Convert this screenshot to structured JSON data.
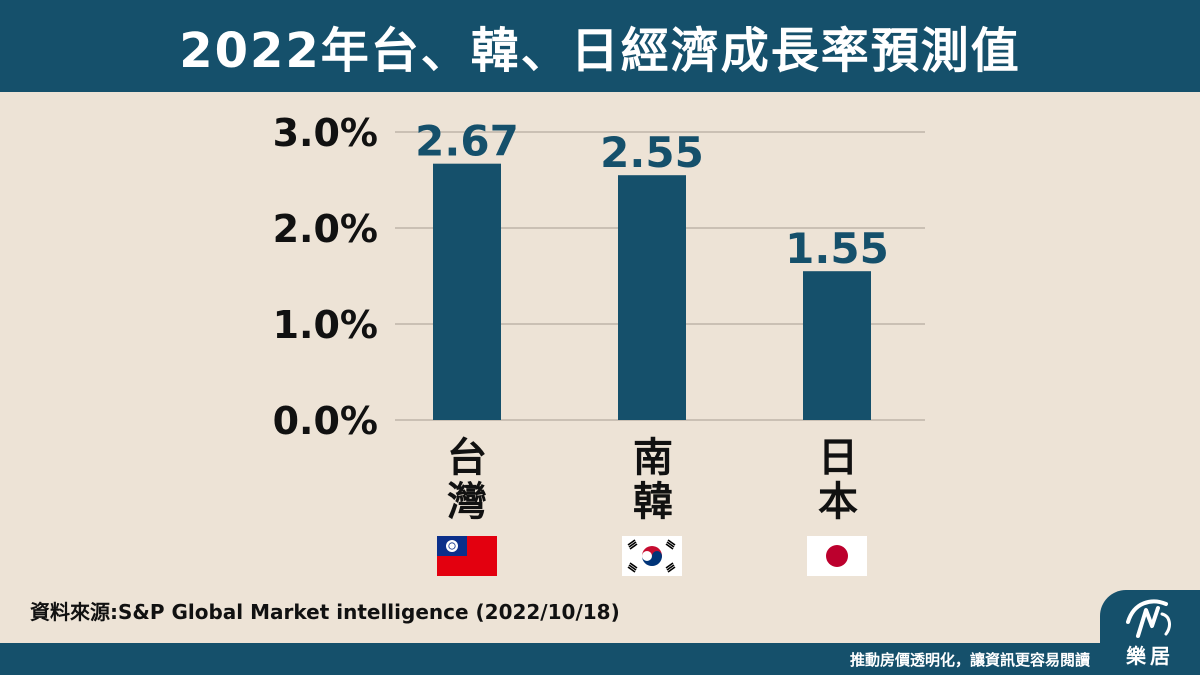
{
  "header": {
    "title": "2022年台、韓、日經濟成長率預測值"
  },
  "chart_data": {
    "type": "bar",
    "categories": [
      "台灣",
      "南韓",
      "日本"
    ],
    "values": [
      2.67,
      2.55,
      1.55
    ],
    "value_labels": [
      "2.67",
      "2.55",
      "1.55"
    ],
    "ylim": [
      0,
      3
    ],
    "yticks": [
      "0.0%",
      "1.0%",
      "2.0%",
      "3.0%"
    ],
    "grid": true,
    "bar_color": "#15506b",
    "label_color": "#15506b",
    "flags": [
      "taiwan-flag-icon",
      "south-korea-flag-icon",
      "japan-flag-icon"
    ]
  },
  "source": {
    "text": "資料來源:S&P Global Market intelligence (2022/10/18)"
  },
  "footer": {
    "slogan": "推動房價透明化，讓資訊更容易閱讀"
  },
  "logo": {
    "text": "樂居",
    "icon": "logo-icon"
  },
  "colors": {
    "brand": "#15506b",
    "background": "#ede3d6"
  }
}
